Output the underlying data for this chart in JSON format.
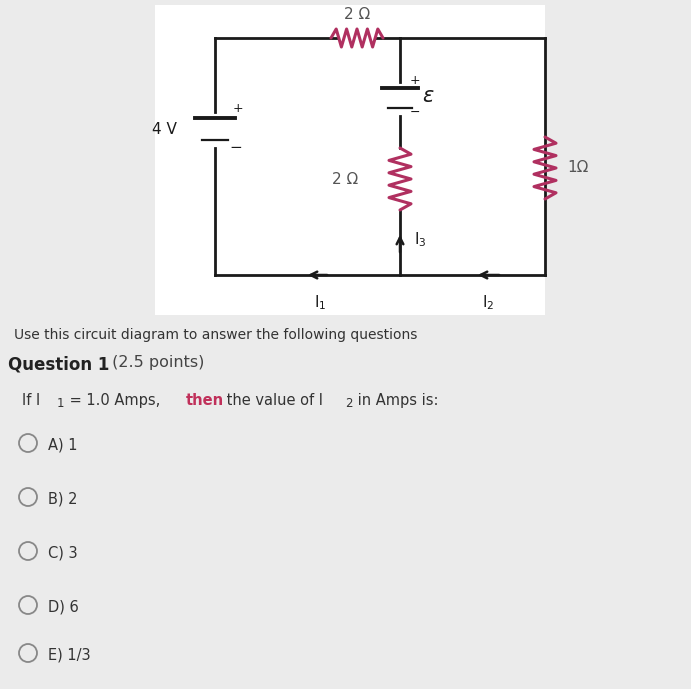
{
  "bg_color": "#ebebeb",
  "circuit_bg": "#ffffff",
  "circuit_color": "#1a1a1a",
  "resistor_color": "#b03060",
  "title_text": "Use this circuit diagram to answer the following questions",
  "question_bold": "Question 1",
  "question_normal": " (2.5 points)",
  "options": [
    "A) 1",
    "B) 2",
    "C) 3",
    "D) 6",
    "E) 1/3"
  ],
  "font_size_main": 10.5
}
